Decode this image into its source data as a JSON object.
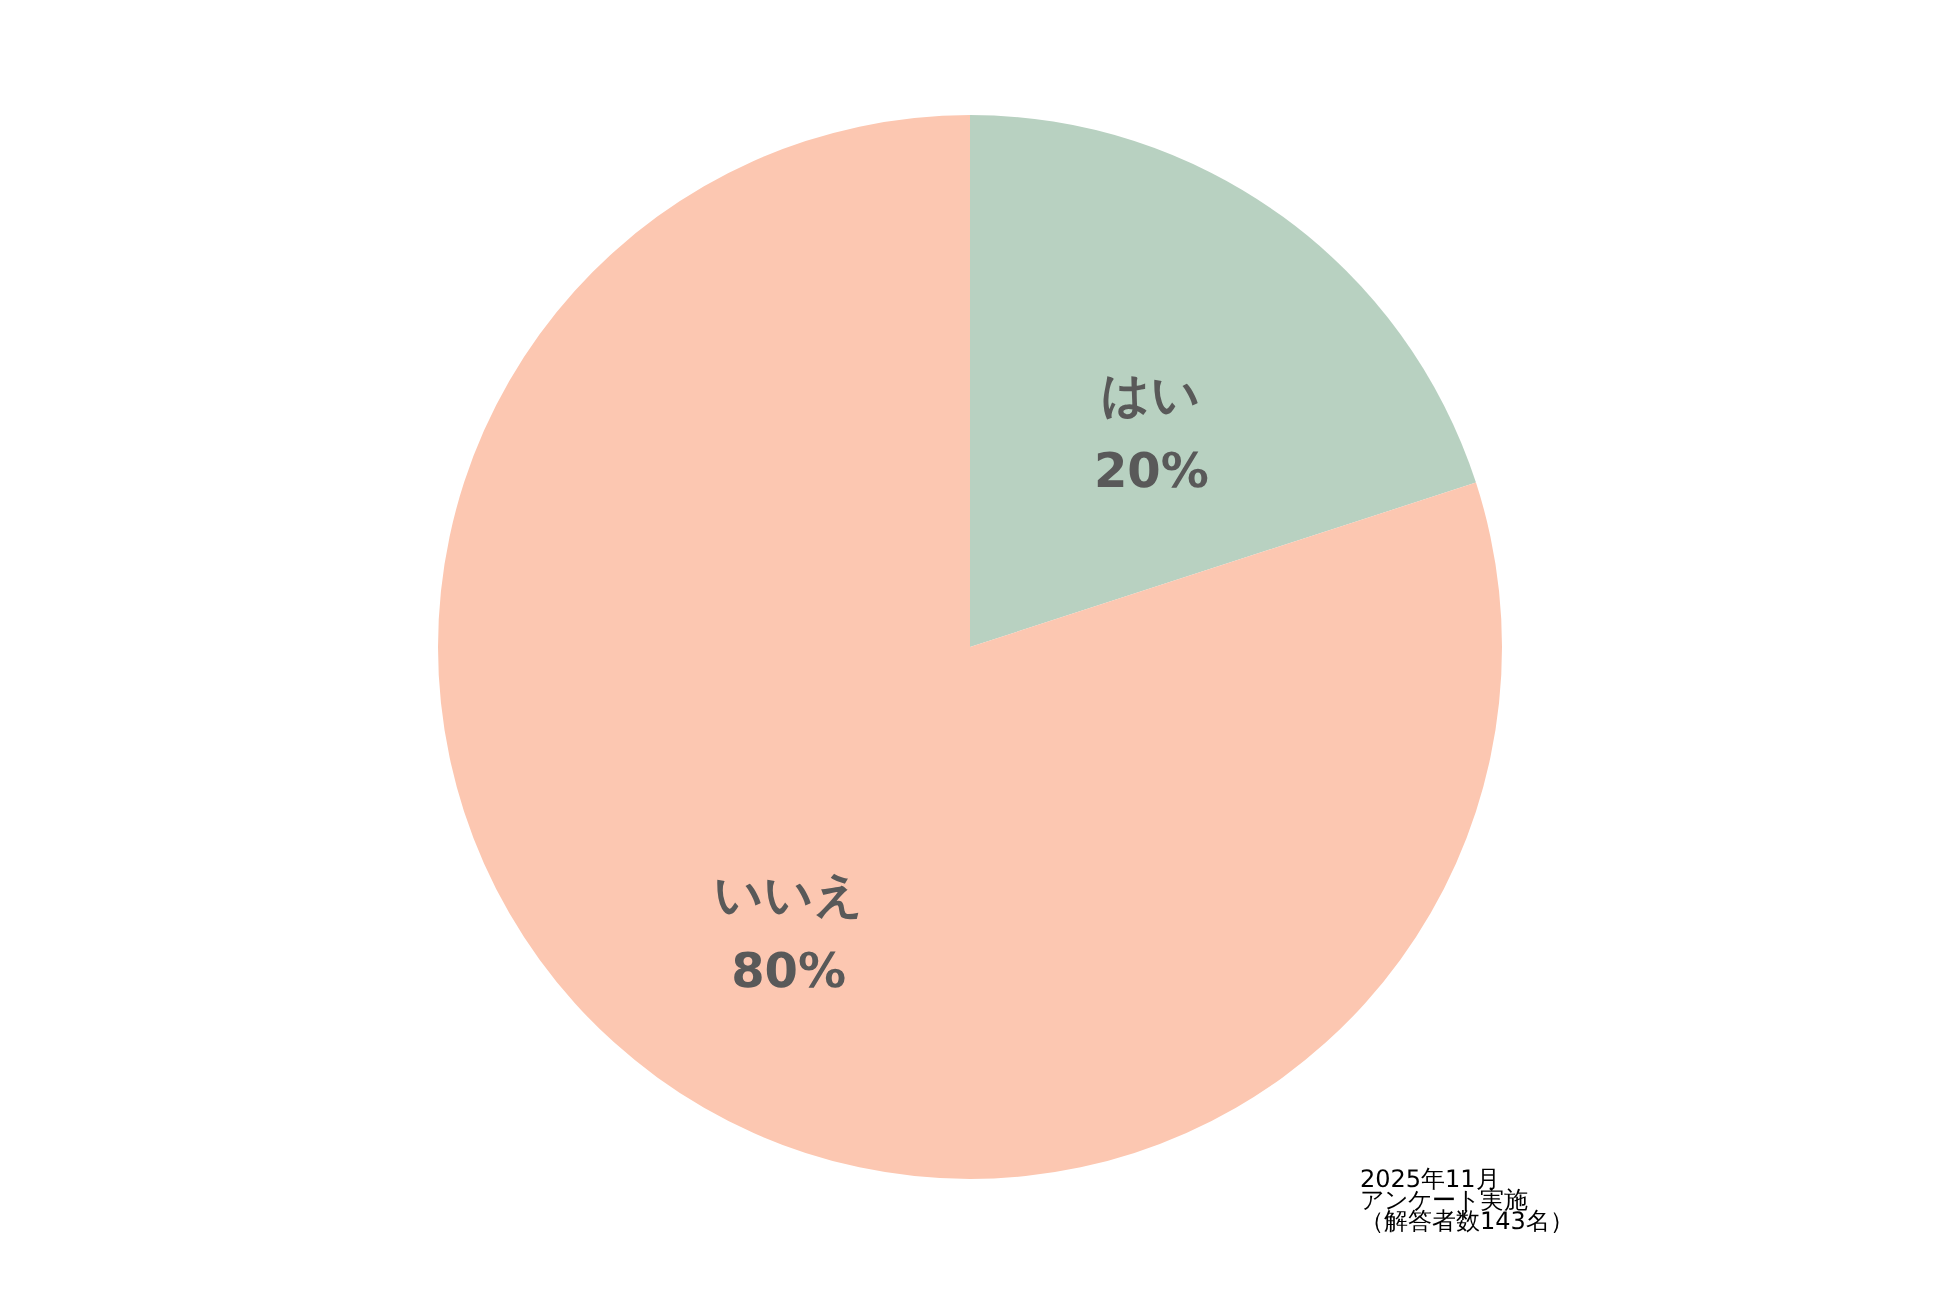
{
  "chart_data": {
    "type": "pie",
    "categories": [
      "はい",
      "いいえ"
    ],
    "values": [
      20,
      80
    ],
    "colors": [
      "#b8d1c1",
      "#fcc7b1"
    ],
    "value_labels": [
      "20%",
      "80%"
    ],
    "annotations": [
      "2025年11月",
      "アンケート実施",
      "（解答者数143名）"
    ]
  }
}
